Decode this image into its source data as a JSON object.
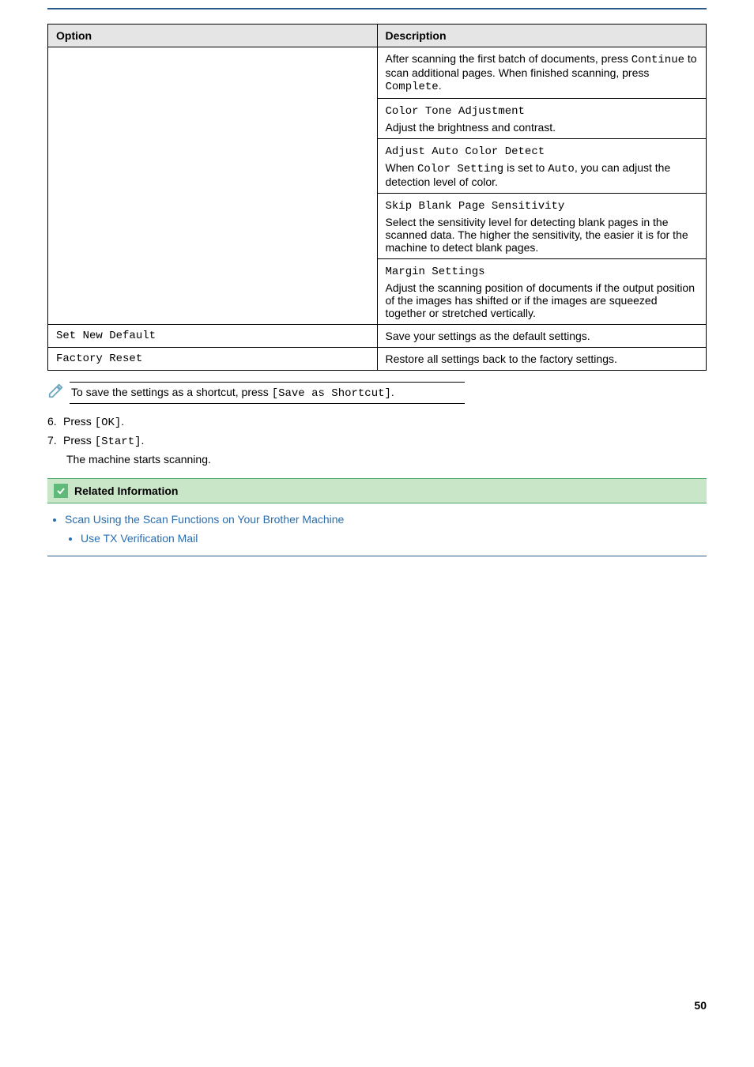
{
  "table": {
    "headers": {
      "option": "Option",
      "description": "Description"
    },
    "rows": [
      {
        "option": "",
        "desc_groups": [
          {
            "lines": [
              {
                "segments": [
                  {
                    "t": "After scanning the first batch of documents, press "
                  },
                  {
                    "t": "Continue",
                    "mono": true
                  },
                  {
                    "t": " to scan additional pages. When finished scanning, press "
                  },
                  {
                    "t": "Complete",
                    "mono": true
                  },
                  {
                    "t": "."
                  }
                ]
              }
            ]
          },
          {
            "lines": [
              {
                "segments": [
                  {
                    "t": "Color Tone Adjustment",
                    "mono": true
                  }
                ]
              },
              {
                "segments": [
                  {
                    "t": "Adjust the brightness and contrast."
                  }
                ]
              }
            ]
          },
          {
            "lines": [
              {
                "segments": [
                  {
                    "t": "Adjust Auto Color Detect",
                    "mono": true
                  }
                ]
              },
              {
                "segments": [
                  {
                    "t": "When "
                  },
                  {
                    "t": "Color Setting",
                    "mono": true
                  },
                  {
                    "t": " is set to "
                  },
                  {
                    "t": "Auto",
                    "mono": true
                  },
                  {
                    "t": ", you can adjust the detection level of color."
                  }
                ]
              }
            ]
          },
          {
            "lines": [
              {
                "segments": [
                  {
                    "t": "Skip Blank Page Sensitivity",
                    "mono": true
                  }
                ]
              },
              {
                "segments": [
                  {
                    "t": "Select the sensitivity level for detecting blank pages in the scanned data. The higher the sensitivity, the easier it is for the machine to detect blank pages."
                  }
                ]
              }
            ]
          },
          {
            "lines": [
              {
                "segments": [
                  {
                    "t": "Margin Settings",
                    "mono": true
                  }
                ]
              },
              {
                "segments": [
                  {
                    "t": "Adjust the scanning position of documents if the output position of the images has shifted or if the images are squeezed together or stretched vertically."
                  }
                ]
              }
            ]
          }
        ]
      },
      {
        "option": "Set New Default",
        "desc_groups": [
          {
            "lines": [
              {
                "segments": [
                  {
                    "t": "Save your settings as the default settings."
                  }
                ]
              }
            ]
          }
        ]
      },
      {
        "option": "Factory Reset",
        "desc_groups": [
          {
            "lines": [
              {
                "segments": [
                  {
                    "t": "Restore all settings back to the factory settings."
                  }
                ]
              }
            ]
          }
        ]
      }
    ]
  },
  "note": {
    "pre": "To save the settings as a shortcut, press ",
    "code": "[Save as Shortcut]",
    "post": "."
  },
  "steps": [
    {
      "num": "6.",
      "pre": "Press ",
      "code": "[OK]",
      "post": "."
    },
    {
      "num": "7.",
      "pre": "Press ",
      "code": "[Start]",
      "post": ".",
      "sub": "The machine starts scanning."
    }
  ],
  "related": {
    "title": "Related Information",
    "links": [
      {
        "text": "Scan Using the Scan Functions on Your Brother Machine",
        "children": [
          {
            "text": "Use TX Verification Mail"
          }
        ]
      }
    ]
  },
  "page_number": "50",
  "colors": {
    "header_rule": "#285a8c",
    "related_bg": "#c9e6c9",
    "related_border": "#4aa868",
    "check_bg": "#5fb979",
    "link": "#2a6db0",
    "th_bg": "#e5e5e5"
  }
}
